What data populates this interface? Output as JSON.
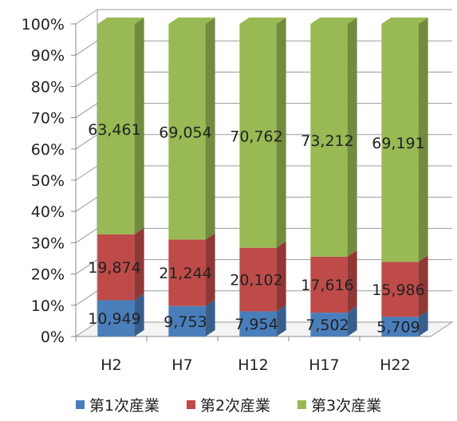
{
  "chart_data": {
    "type": "bar",
    "stacked": "percent",
    "categories": [
      "H2",
      "H7",
      "H12",
      "H17",
      "H22"
    ],
    "series": [
      {
        "name": "第1次産業",
        "values": [
          10949,
          9753,
          7954,
          7502,
          5709
        ],
        "color": "#4a7ebb"
      },
      {
        "name": "第2次産業",
        "values": [
          19874,
          21244,
          20102,
          17616,
          15986
        ],
        "color": "#be4b48"
      },
      {
        "name": "第3次産業",
        "values": [
          63461,
          69054,
          70762,
          73212,
          69191
        ],
        "color": "#98b954"
      }
    ],
    "data_labels": [
      [
        "10,949",
        "9,753",
        "7,954",
        "7,502",
        "5,709"
      ],
      [
        "19,874",
        "21,244",
        "20,102",
        "17,616",
        "15,986"
      ],
      [
        "63,461",
        "69,054",
        "70,762",
        "73,212",
        "69,191"
      ]
    ],
    "yticks": [
      "0%",
      "10%",
      "20%",
      "30%",
      "40%",
      "50%",
      "60%",
      "70%",
      "80%",
      "90%",
      "100%"
    ],
    "ylim": [
      0,
      100
    ],
    "grid": true,
    "legend_position": "bottom",
    "title": "",
    "xlabel": "",
    "ylabel": ""
  }
}
